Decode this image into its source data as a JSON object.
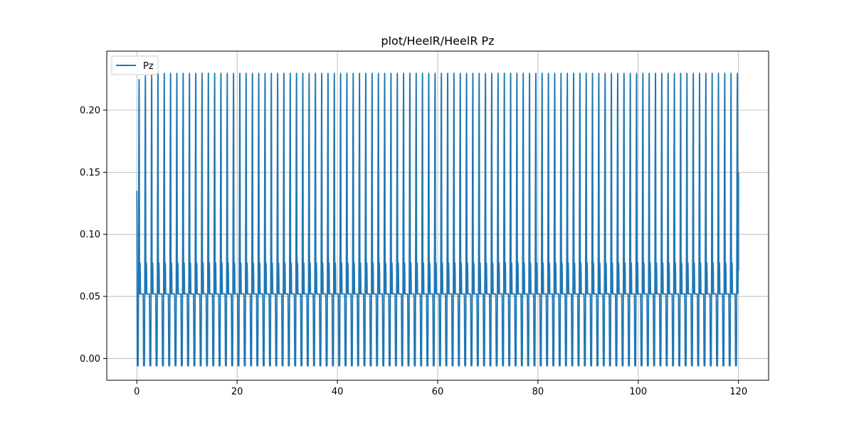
{
  "chart_data": {
    "type": "line",
    "title": "plot/HeelR/HeelR Pz",
    "xlabel": "",
    "ylabel": "",
    "xlim": [
      -6,
      126
    ],
    "ylim": [
      -0.0175,
      0.2475
    ],
    "xticks": [
      0,
      20,
      40,
      60,
      80,
      100,
      120
    ],
    "yticks": [
      0.0,
      0.05,
      0.1,
      0.15,
      0.2
    ],
    "xtick_labels": [
      "0",
      "20",
      "40",
      "60",
      "80",
      "100",
      "120"
    ],
    "ytick_labels": [
      "0.00",
      "0.05",
      "0.10",
      "0.15",
      "0.20"
    ],
    "grid": true,
    "legend": {
      "position": "top-left",
      "entries": [
        "Pz"
      ]
    },
    "series": [
      {
        "name": "Pz",
        "color": "#1f77b4",
        "start_value": 0.135,
        "end_value": 0.15,
        "cycle_period": 1.256,
        "x_start": 0,
        "x_end": 120,
        "peak_value": 0.23,
        "secondary_peak_value": 0.077,
        "mid_plateau_value": 0.052,
        "trough_value": -0.006,
        "early_peak_values": [
          0.225,
          0.228,
          0.229,
          0.23
        ]
      }
    ]
  }
}
